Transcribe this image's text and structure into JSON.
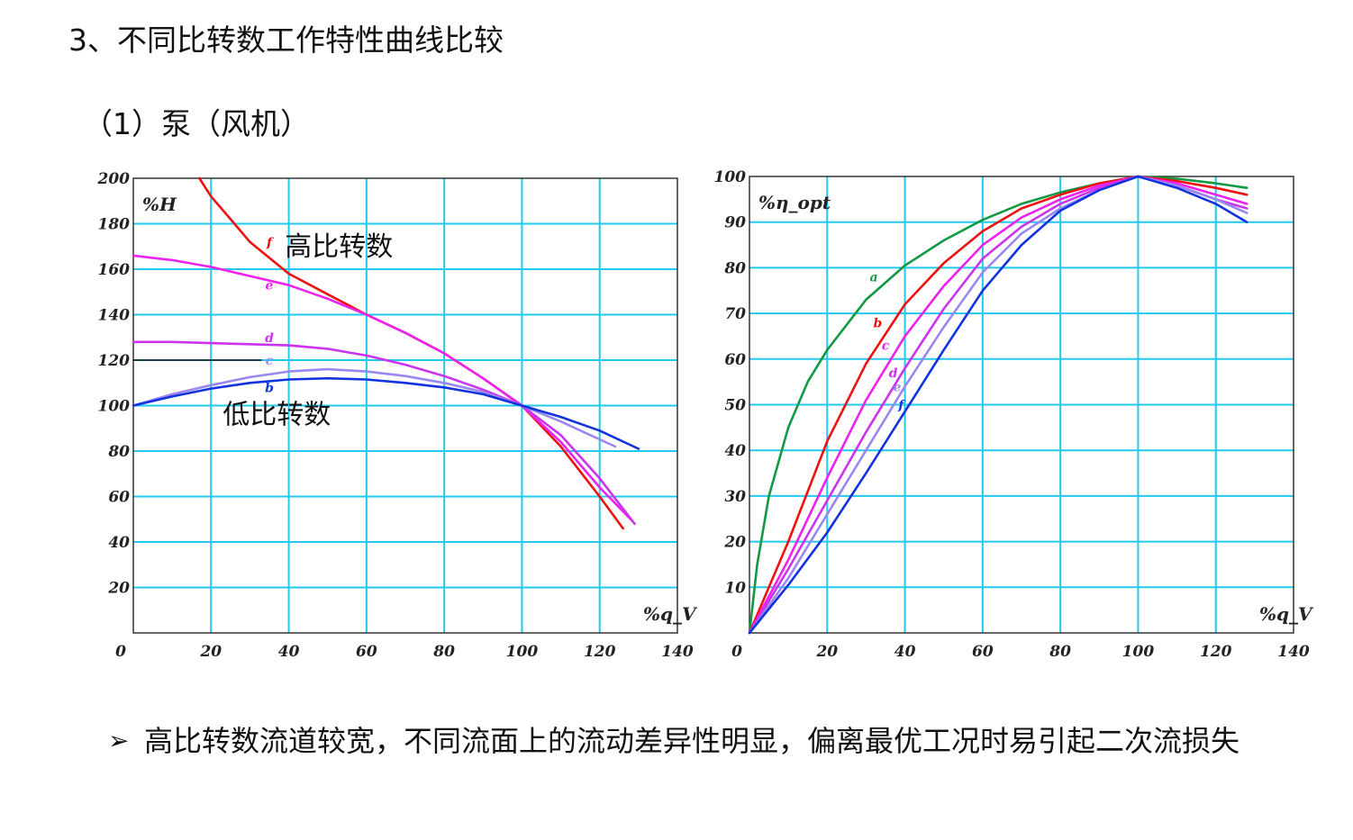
{
  "page": {
    "heading": "3、不同比转数工作特性曲线比较",
    "subheading": "（1）泵（风机）",
    "bullet": {
      "arrow": "➢",
      "text": "高比转数流道较宽，不同流面上的流动差异性明显，偏离最优工况时易引起二次流损失"
    }
  },
  "chart_data": [
    {
      "type": "line",
      "title": "",
      "xlabel": "%q_V",
      "ylabel": "%H",
      "xlim": [
        0,
        140
      ],
      "ylim": [
        0,
        200
      ],
      "xticks": [
        0,
        20,
        40,
        60,
        80,
        100,
        120,
        140
      ],
      "yticks": [
        20,
        40,
        60,
        80,
        100,
        120,
        140,
        160,
        180,
        200
      ],
      "tick_labels_x": [
        "0",
        "20",
        "40",
        "60",
        "80",
        "100",
        "120",
        "140"
      ],
      "tick_labels_y": [
        "20",
        "40",
        "60",
        "80",
        "100",
        "120",
        "140",
        "160",
        "180",
        "200"
      ],
      "grid": true,
      "series": [
        {
          "name": "f",
          "color": "#ee1111",
          "label_at": [
            35,
            170
          ],
          "points": [
            [
              17,
              200
            ],
            [
              20,
              192
            ],
            [
              25,
              182
            ],
            [
              30,
              172
            ],
            [
              35,
              165
            ],
            [
              40,
              158
            ],
            [
              50,
              149
            ],
            [
              60,
              140
            ],
            [
              70,
              132
            ],
            [
              80,
              123
            ],
            [
              90,
              112
            ],
            [
              100,
              100
            ],
            [
              110,
              82
            ],
            [
              120,
              60
            ],
            [
              126,
              46
            ]
          ]
        },
        {
          "name": "e",
          "color": "#ee22ee",
          "label_at": [
            35,
            151
          ],
          "points": [
            [
              0,
              166
            ],
            [
              10,
              164
            ],
            [
              20,
              161
            ],
            [
              30,
              157
            ],
            [
              40,
              153
            ],
            [
              50,
              147
            ],
            [
              60,
              140
            ],
            [
              70,
              132
            ],
            [
              80,
              123
            ],
            [
              90,
              112
            ],
            [
              100,
              100
            ],
            [
              110,
              84
            ],
            [
              120,
              64
            ],
            [
              128,
              50
            ]
          ]
        },
        {
          "name": "d",
          "color": "#cc33ee",
          "label_at": [
            35,
            128
          ],
          "points": [
            [
              0,
              128
            ],
            [
              10,
              128
            ],
            [
              20,
              127.5
            ],
            [
              30,
              127
            ],
            [
              40,
              126.5
            ],
            [
              50,
              125
            ],
            [
              60,
              122
            ],
            [
              70,
              118
            ],
            [
              80,
              113
            ],
            [
              90,
              107
            ],
            [
              100,
              100
            ],
            [
              110,
              87
            ],
            [
              120,
              68
            ],
            [
              129,
              48
            ]
          ]
        },
        {
          "name": "c",
          "color": "#9988f0",
          "label_at": [
            35,
            118
          ],
          "points": [
            [
              0,
              100
            ],
            [
              10,
              105
            ],
            [
              20,
              109
            ],
            [
              30,
              112.5
            ],
            [
              40,
              115
            ],
            [
              50,
              116
            ],
            [
              60,
              115
            ],
            [
              70,
              113
            ],
            [
              80,
              110
            ],
            [
              90,
              106
            ],
            [
              100,
              100
            ],
            [
              110,
              93
            ],
            [
              124,
              82
            ]
          ]
        },
        {
          "name": "b",
          "color": "#1133dd",
          "label_at": [
            35,
            106
          ],
          "points": [
            [
              0,
              100
            ],
            [
              10,
              104
            ],
            [
              20,
              107.5
            ],
            [
              30,
              110
            ],
            [
              40,
              111.5
            ],
            [
              50,
              112
            ],
            [
              60,
              111.5
            ],
            [
              70,
              110
            ],
            [
              80,
              108
            ],
            [
              90,
              105
            ],
            [
              100,
              100
            ],
            [
              110,
              95
            ],
            [
              120,
              89
            ],
            [
              130,
              81
            ]
          ]
        }
      ],
      "annotations": [
        {
          "text": "高比转数",
          "at": [
            39,
            166
          ]
        },
        {
          "text": "低比转数",
          "at": [
            23,
            92
          ]
        }
      ],
      "reference_line": {
        "y": 120,
        "x_from": 0,
        "x_to": 33
      }
    },
    {
      "type": "line",
      "title": "",
      "xlabel": "%q_V",
      "ylabel": "%η_opt",
      "xlim": [
        0,
        140
      ],
      "ylim": [
        0,
        100
      ],
      "xticks": [
        0,
        20,
        40,
        60,
        80,
        100,
        120,
        140
      ],
      "yticks": [
        10,
        20,
        30,
        40,
        50,
        60,
        70,
        80,
        90,
        100
      ],
      "tick_labels_x": [
        "0",
        "20",
        "40",
        "60",
        "80",
        "100",
        "120",
        "140"
      ],
      "tick_labels_y": [
        "10",
        "20",
        "30",
        "40",
        "50",
        "60",
        "70",
        "80",
        "90",
        "100"
      ],
      "grid": true,
      "series": [
        {
          "name": "a",
          "color": "#119944",
          "label_at": [
            32,
            77
          ],
          "points": [
            [
              0,
              0
            ],
            [
              2,
              15
            ],
            [
              5,
              30
            ],
            [
              10,
              45
            ],
            [
              15,
              55
            ],
            [
              20,
              62
            ],
            [
              30,
              73
            ],
            [
              40,
              80.5
            ],
            [
              50,
              86
            ],
            [
              60,
              90.5
            ],
            [
              70,
              94
            ],
            [
              80,
              96.5
            ],
            [
              90,
              98.5
            ],
            [
              100,
              100
            ],
            [
              110,
              99.5
            ],
            [
              120,
              98.5
            ],
            [
              128,
              97.5
            ]
          ]
        },
        {
          "name": "b",
          "color": "#ee1111",
          "label_at": [
            33,
            67
          ],
          "points": [
            [
              0,
              0
            ],
            [
              10,
              20
            ],
            [
              20,
              42
            ],
            [
              30,
              59
            ],
            [
              40,
              72
            ],
            [
              50,
              81
            ],
            [
              60,
              88
            ],
            [
              70,
              93
            ],
            [
              80,
              96
            ],
            [
              90,
              98.5
            ],
            [
              100,
              100
            ],
            [
              110,
              99
            ],
            [
              120,
              97.5
            ],
            [
              128,
              96
            ]
          ]
        },
        {
          "name": "c",
          "color": "#ee22ee",
          "label_at": [
            35,
            62
          ],
          "points": [
            [
              0,
              0
            ],
            [
              10,
              16
            ],
            [
              20,
              34
            ],
            [
              30,
              51
            ],
            [
              40,
              65
            ],
            [
              50,
              76
            ],
            [
              60,
              85
            ],
            [
              70,
              91
            ],
            [
              80,
              95
            ],
            [
              90,
              98
            ],
            [
              100,
              100
            ],
            [
              110,
              98.5
            ],
            [
              120,
              96
            ],
            [
              128,
              94
            ]
          ]
        },
        {
          "name": "d",
          "color": "#cc33ee",
          "label_at": [
            37,
            56
          ],
          "points": [
            [
              0,
              0
            ],
            [
              10,
              14
            ],
            [
              20,
              29
            ],
            [
              30,
              44
            ],
            [
              40,
              58
            ],
            [
              50,
              71
            ],
            [
              60,
              82
            ],
            [
              70,
              89
            ],
            [
              80,
              94
            ],
            [
              90,
              97.5
            ],
            [
              100,
              100
            ],
            [
              110,
              98
            ],
            [
              120,
              95
            ],
            [
              128,
              93
            ]
          ]
        },
        {
          "name": "e",
          "color": "#9988f0",
          "label_at": [
            38,
            53
          ],
          "points": [
            [
              0,
              0
            ],
            [
              10,
              12
            ],
            [
              20,
              26
            ],
            [
              30,
              40
            ],
            [
              40,
              54
            ],
            [
              50,
              67
            ],
            [
              60,
              79
            ],
            [
              70,
              87.5
            ],
            [
              80,
              93
            ],
            [
              90,
              97
            ],
            [
              100,
              100
            ],
            [
              110,
              98
            ],
            [
              120,
              95
            ],
            [
              128,
              92
            ]
          ]
        },
        {
          "name": "f",
          "color": "#1133dd",
          "label_at": [
            39,
            49
          ],
          "points": [
            [
              0,
              0
            ],
            [
              10,
              10.5
            ],
            [
              20,
              22
            ],
            [
              30,
              35
            ],
            [
              40,
              48.5
            ],
            [
              50,
              62
            ],
            [
              60,
              75
            ],
            [
              70,
              85
            ],
            [
              80,
              92.5
            ],
            [
              90,
              97
            ],
            [
              100,
              100
            ],
            [
              110,
              97.5
            ],
            [
              120,
              94
            ],
            [
              128,
              90
            ]
          ]
        }
      ]
    }
  ]
}
